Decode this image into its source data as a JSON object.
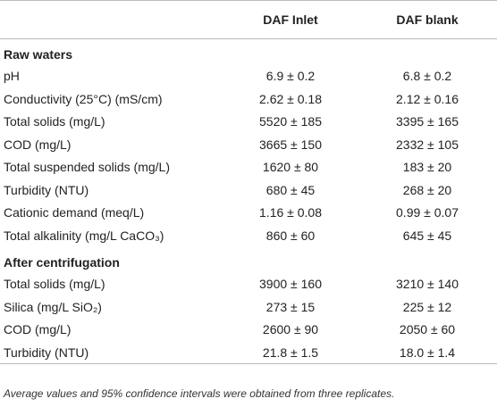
{
  "table": {
    "columns": [
      "DAF Inlet",
      "DAF blank"
    ],
    "sections": [
      {
        "title": "Raw waters",
        "rows": [
          [
            "pH",
            "6.9 ± 0.2",
            "6.8 ± 0.2"
          ],
          [
            "Conductivity (25°C) (mS/cm)",
            "2.62 ± 0.18",
            "2.12 ± 0.16"
          ],
          [
            "Total solids (mg/L)",
            "5520 ± 185",
            "3395 ± 165"
          ],
          [
            "COD (mg/L)",
            "3665 ± 150",
            "2332 ± 105"
          ],
          [
            "Total suspended solids (mg/L)",
            "1620 ± 80",
            "183 ± 20"
          ],
          [
            "Turbidity (NTU)",
            "680 ± 45",
            "268 ± 20"
          ],
          [
            "Cationic demand (meq/L)",
            "1.16 ± 0.08",
            "0.99 ± 0.07"
          ],
          [
            "Total alkalinity (mg/L CaCO₃)",
            "860 ± 60",
            "645 ± 45"
          ]
        ]
      },
      {
        "title": "After centrifugation",
        "rows": [
          [
            "Total solids (mg/L)",
            "3900 ± 160",
            "3210 ± 140"
          ],
          [
            "Silica (mg/L SiO₂)",
            "273 ± 15",
            "225 ± 12"
          ],
          [
            "COD (mg/L)",
            "2600 ± 90",
            "2050 ± 60"
          ],
          [
            "Turbidity (NTU)",
            "21.8 ± 1.5",
            "18.0 ± 1.4"
          ]
        ]
      }
    ],
    "footnote": "Average values and 95% confidence intervals were obtained from three replicates."
  }
}
